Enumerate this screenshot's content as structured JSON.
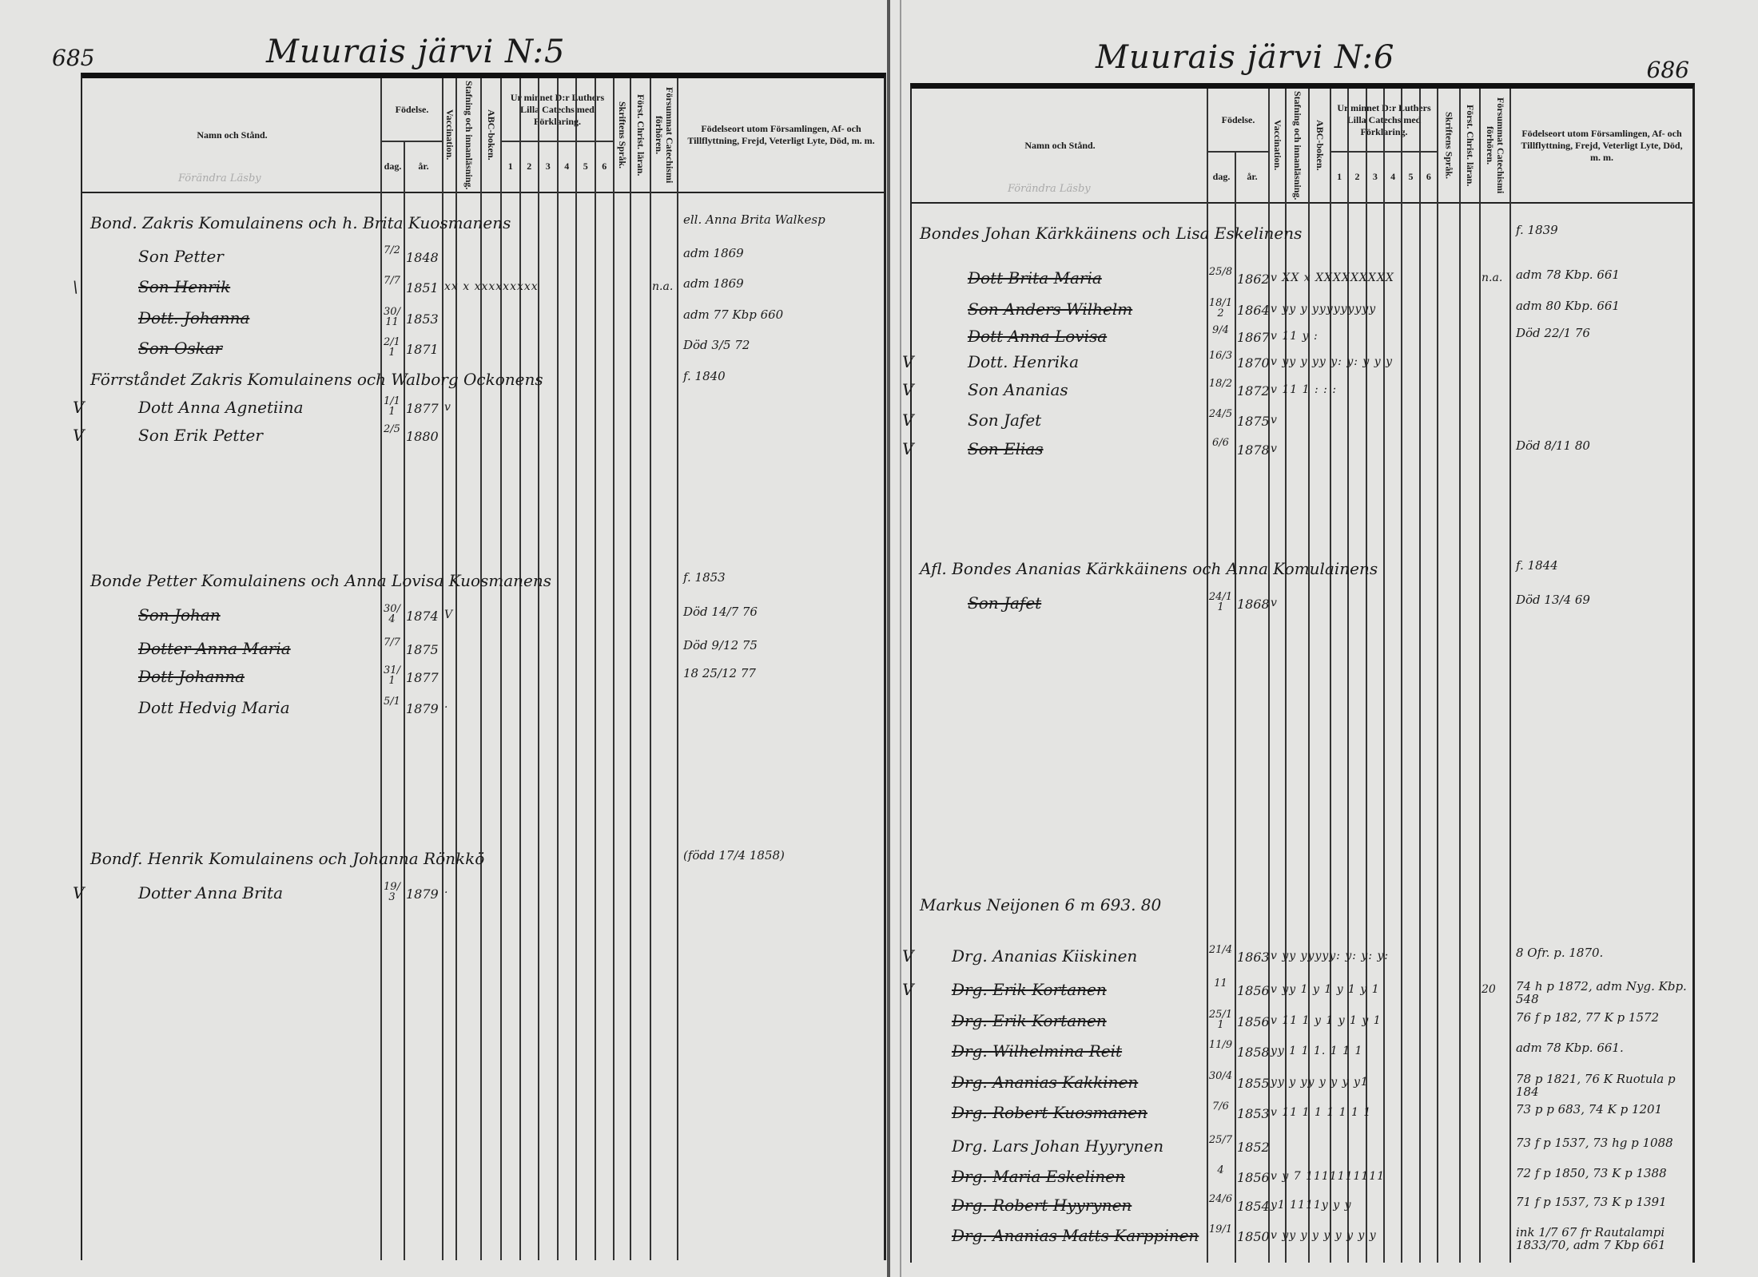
{
  "header_labels": {
    "name": "Namn och Stånd.",
    "birth": "Födelse.",
    "day": "dag.",
    "year": "år.",
    "vaccination": "Vaccination.",
    "spelling": "Stafning och innanläsning.",
    "abc": "ABC-boken.",
    "catechism": "Ur minnet D:r Luthers Lilla Catechs med Förklaring.",
    "catechism_parts": [
      "1",
      "2",
      "3",
      "4",
      "5",
      "6"
    ],
    "scripture": "Skriftens Språk.",
    "christian": "Först. Christ. läran.",
    "missed": "Försummat Catechismi förhören.",
    "birthplace": "Födelseort utom Församlingen, Af- och Tillflyttning, Frejd, Veterligt Lyte, Död, m. m.",
    "faint_note": "Förändra Läsby"
  },
  "left_page": {
    "page_number": "685",
    "title": "Muurais järvi N:5",
    "rows": [
      {
        "check": "",
        "name": "Bond. Zakris Komulainens och h. Brita Kuosmanens",
        "struck": false,
        "dag": "",
        "ar": "",
        "marks": "",
        "missed": "",
        "note": "ell. Anna Brita Walkesp"
      },
      {
        "check": "",
        "name": "Son Petter",
        "struck": false,
        "dag": "7/2",
        "ar": "1848",
        "marks": "",
        "missed": "",
        "note": "adm 1869"
      },
      {
        "check": "\\",
        "name": "Son Henrik",
        "struck": true,
        "dag": "7/7",
        "ar": "1851",
        "marks": "xx x  xxxxxxxxx",
        "missed": "n.a.",
        "note": "adm 1869"
      },
      {
        "check": "",
        "name": "Dott. Johanna",
        "struck": true,
        "dag": "30/11",
        "ar": "1853",
        "marks": "",
        "missed": "",
        "note": "adm 77 Kbp 660"
      },
      {
        "check": "",
        "name": "Son Oskar",
        "struck": true,
        "dag": "2/11",
        "ar": "1871",
        "marks": "",
        "missed": "",
        "note": "Död 3/5 72"
      },
      {
        "check": "",
        "name": "Förrståndet Zakris Komulainens och Walborg Ockonens",
        "struck": false,
        "dag": "",
        "ar": "",
        "marks": "",
        "missed": "",
        "note": "f. 1840"
      },
      {
        "check": "V",
        "name": "Dott Anna Agnetiina",
        "struck": false,
        "dag": "1/11",
        "ar": "1877",
        "marks": "v",
        "missed": "",
        "note": ""
      },
      {
        "check": "V",
        "name": "Son Erik Petter",
        "struck": false,
        "dag": "2/5",
        "ar": "1880",
        "marks": "",
        "missed": "",
        "note": ""
      },
      {
        "check": "",
        "name": "Bonde Petter Komulainens och Anna Lovisa Kuosmanens",
        "struck": false,
        "dag": "",
        "ar": "",
        "marks": "",
        "missed": "",
        "note": "f. 1853"
      },
      {
        "check": "",
        "name": "Son Johan",
        "struck": true,
        "dag": "30/4",
        "ar": "1874",
        "marks": "V",
        "missed": "",
        "note": "Död 14/7 76"
      },
      {
        "check": "",
        "name": "Dotter Anna Maria",
        "struck": true,
        "dag": "7/7",
        "ar": "1875",
        "marks": "",
        "missed": "",
        "note": "Död 9/12 75"
      },
      {
        "check": "",
        "name": "Dott Johanna",
        "struck": true,
        "dag": "31/1",
        "ar": "1877",
        "marks": "",
        "missed": "",
        "note": "18 25/12 77"
      },
      {
        "check": "",
        "name": "Dott Hedvig Maria",
        "struck": false,
        "dag": "5/1",
        "ar": "1879",
        "marks": "·",
        "missed": "",
        "note": ""
      },
      {
        "check": "",
        "name": "Bondf. Henrik Komulainens och Johanna Rönkkö",
        "struck": false,
        "dag": "",
        "ar": "",
        "marks": "",
        "missed": "",
        "note": "(född 17/4 1858)"
      },
      {
        "check": "V",
        "name": "Dotter Anna Brita",
        "struck": false,
        "dag": "19/3",
        "ar": "1879",
        "marks": "·",
        "missed": "",
        "note": ""
      }
    ]
  },
  "right_page": {
    "page_number": "686",
    "title": "Muurais järvi N:6",
    "rows": [
      {
        "check": "",
        "name": "Bondes Johan Kärkkäinens och Lisa Eskelinens",
        "struck": false,
        "dag": "",
        "ar": "",
        "marks": "",
        "missed": "",
        "note": "f. 1839"
      },
      {
        "check": "",
        "name": "Dott Brita Maria",
        "struck": true,
        "dag": "25/8",
        "ar": "1862",
        "marks": "v XX x XXXXXXXXX",
        "missed": "n.a.",
        "note": "adm 78 Kbp. 661"
      },
      {
        "check": "",
        "name": "Son Anders Wilhelm",
        "struck": true,
        "dag": "18/12",
        "ar": "1864",
        "marks": "v yy y yyyyyyyyy",
        "missed": "",
        "note": "adm 80 Kbp. 661"
      },
      {
        "check": "",
        "name": "Dott Anna Lovisa",
        "struck": true,
        "dag": "9/4",
        "ar": "1867",
        "marks": "v 11 y   :",
        "missed": "",
        "note": "Död 22/1 76"
      },
      {
        "check": "V",
        "name": "Dott. Henrika",
        "struck": false,
        "dag": "16/3",
        "ar": "1870",
        "marks": "v yy y yy y: y: y y y",
        "missed": "",
        "note": ""
      },
      {
        "check": "V",
        "name": "Son Ananias",
        "struck": false,
        "dag": "18/2",
        "ar": "1872",
        "marks": "v 11 1 : : :",
        "missed": "",
        "note": ""
      },
      {
        "check": "V",
        "name": "Son Jafet",
        "struck": false,
        "dag": "24/5",
        "ar": "1875",
        "marks": "v",
        "missed": "",
        "note": ""
      },
      {
        "check": "V",
        "name": "Son Elias",
        "struck": true,
        "dag": "6/6",
        "ar": "1878",
        "marks": "v",
        "missed": "",
        "note": "Död 8/11 80"
      },
      {
        "check": "",
        "name": "Afl. Bondes Ananias Kärkkäinens och Anna Komulainens",
        "struck": false,
        "dag": "",
        "ar": "",
        "marks": "",
        "missed": "",
        "note": "f. 1844"
      },
      {
        "check": "",
        "name": "Son Jafet",
        "struck": true,
        "dag": "24/11",
        "ar": "1868",
        "marks": "v",
        "missed": "",
        "note": "Död 13/4 69"
      },
      {
        "check": "",
        "name": "Markus Neijonen 6 m 693. 80",
        "struck": false,
        "dag": "",
        "ar": "",
        "marks": "",
        "missed": "",
        "note": ""
      },
      {
        "check": "V",
        "name": "Drg. Ananias Kiiskinen",
        "struck": false,
        "dag": "21/4",
        "ar": "1863",
        "marks": "v yy yyyyy: y: y: y:",
        "missed": "",
        "note": "8 Ofr. p. 1870."
      },
      {
        "check": "V",
        "name": "Drg. Erik Kortanen",
        "struck": true,
        "dag": "11",
        "ar": "1856",
        "marks": "v yy 1 y 1 y 1 y 1",
        "missed": "20",
        "note": "74 h p 1872, adm Nyg. Kbp. 548"
      },
      {
        "check": "",
        "name": "Drg. Erik Kortanen",
        "struck": true,
        "dag": "25/11",
        "ar": "1856",
        "marks": "v 11 1 y 1 y 1 y 1",
        "missed": "",
        "note": "76 f p 182, 77 K p 1572"
      },
      {
        "check": "",
        "name": "Drg. Wilhelmina Reit",
        "struck": true,
        "dag": "11/9",
        "ar": "1858",
        "marks": "  yy 1 1 1. 1 1 1",
        "missed": "",
        "note": "adm 78 Kbp. 661."
      },
      {
        "check": "",
        "name": "Drg. Ananias Kakkinen",
        "struck": true,
        "dag": "30/4",
        "ar": "1855",
        "marks": "  yy y yy y y y y1",
        "missed": "",
        "note": "78 p 1821, 76 K Ruotula p 184"
      },
      {
        "check": "",
        "name": "Drg. Robert Kuosmanen",
        "struck": true,
        "dag": "7/6",
        "ar": "1853",
        "marks": "v 11 1 1 1 1 1 1",
        "missed": "",
        "note": "73 p p 683, 74 K p 1201"
      },
      {
        "check": "",
        "name": "Drg. Lars Johan Hyyrynen",
        "struck": false,
        "dag": "25/7",
        "ar": "1852",
        "marks": "",
        "missed": "",
        "note": "73 f p 1537, 73 hg p 1088"
      },
      {
        "check": "",
        "name": "Drg. Maria Eskelinen",
        "struck": true,
        "dag": "4",
        "ar": "1856",
        "marks": "v y 7 1111111111",
        "missed": "",
        "note": "72 f p 1850, 73 K p 1388"
      },
      {
        "check": "",
        "name": "Drg. Robert Hyyrynen",
        "struck": true,
        "dag": "24/6",
        "ar": "1854",
        "marks": "  y1 1111y y y",
        "missed": "",
        "note": "71 f p 1537, 73 K p 1391"
      },
      {
        "check": "",
        "name": "Drg. Ananias Matts Karppinen",
        "struck": true,
        "dag": "19/1",
        "ar": "1850",
        "marks": "v yy y y y y y y y",
        "missed": "",
        "note": "ink 1/7 67 fr Rautalampi 1833/70, adm 7 Kbp 661"
      }
    ]
  }
}
